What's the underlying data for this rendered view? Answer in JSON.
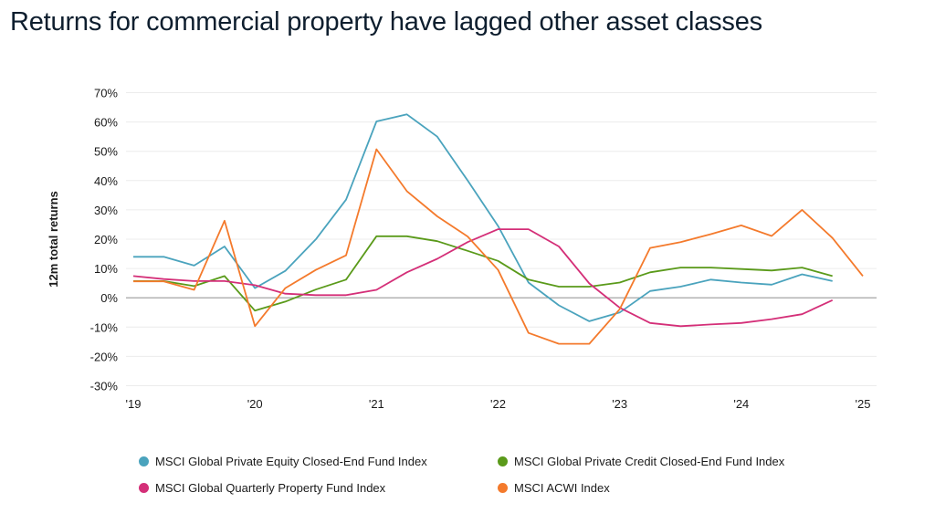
{
  "title": "Returns for commercial property have lagged other asset classes",
  "chart_data": {
    "type": "line",
    "title": "Returns for commercial property have lagged other asset classes",
    "xlabel": "",
    "ylabel": "12m total returns",
    "x_ticks": [
      "'19",
      "'20",
      "'21",
      "'22",
      "'23",
      "'24",
      "'25"
    ],
    "y_ticks": [
      "70%",
      "60%",
      "50%",
      "40%",
      "30%",
      "20%",
      "10%",
      "0%",
      "-10%",
      "-20%",
      "-30%"
    ],
    "ylim": [
      -30,
      70
    ],
    "xlim": [
      2019,
      2025
    ],
    "grid": "horizontal",
    "legend_position": "bottom",
    "x": [
      2019.0,
      2019.25,
      2019.5,
      2019.75,
      2020.0,
      2020.25,
      2020.5,
      2020.75,
      2021.0,
      2021.25,
      2021.5,
      2021.75,
      2022.0,
      2022.25,
      2022.5,
      2022.75,
      2023.0,
      2023.25,
      2023.5,
      2023.75,
      2024.0,
      2024.25,
      2024.5,
      2024.75,
      2025.0
    ],
    "series": [
      {
        "name": "MSCI Global Private Equity Closed-End Fund Index",
        "color": "#4aa3bd",
        "values": [
          14,
          14,
          11,
          17.5,
          3.3,
          9.2,
          19.9,
          33.5,
          60.2,
          62.6,
          55,
          40,
          24.5,
          5.2,
          -2.6,
          -8,
          -5,
          2.3,
          3.8,
          6.2,
          5.2,
          4.5,
          8,
          5.7,
          null
        ]
      },
      {
        "name": "MSCI Global Private Credit Closed-End Fund Index",
        "color": "#5a9a1a",
        "values": [
          5.7,
          5.7,
          4,
          7.4,
          -4.4,
          -1.3,
          2.8,
          6.2,
          21,
          21,
          19.3,
          16,
          12.6,
          6.2,
          3.8,
          3.8,
          5.2,
          8.7,
          10.3,
          10.3,
          9.8,
          9.3,
          10.3,
          7.4,
          null
        ]
      },
      {
        "name": "MSCI Global Quarterly Property Fund Index",
        "color": "#d42f78",
        "values": [
          7.4,
          6.4,
          5.7,
          5.7,
          4.3,
          1.4,
          0.9,
          0.9,
          2.7,
          8.7,
          13.3,
          19,
          23.4,
          23.4,
          17.5,
          4.9,
          -3.4,
          -8.6,
          -9.7,
          -9.1,
          -8.6,
          -7.3,
          -5.6,
          -0.8,
          null
        ]
      },
      {
        "name": "MSCI ACWI Index",
        "color": "#f47a2c",
        "values": [
          5.6,
          5.6,
          2.7,
          26.3,
          -9.7,
          3.3,
          9.5,
          14.5,
          50.7,
          36.4,
          27.8,
          20.9,
          9.5,
          -12,
          -15.7,
          -15.7,
          -3.9,
          17,
          19,
          21.7,
          24.7,
          21.1,
          30,
          20.4,
          7.4
        ]
      }
    ]
  }
}
